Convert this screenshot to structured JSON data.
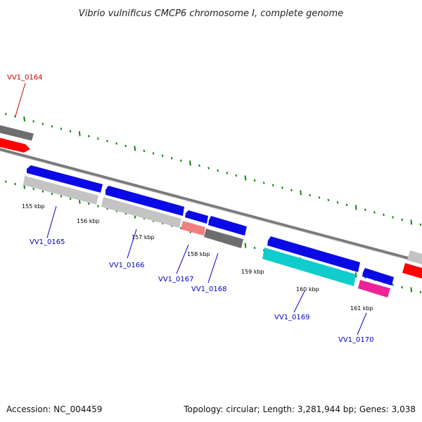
{
  "title": "Vibrio vulnificus CMCP6 chromosome I, complete genome",
  "accession": "Accession: NC_004459",
  "summary": "Topology: circular; Length: 3,281,944 bp; Genes: 3,038",
  "scale_labels": [
    "155 kbp",
    "156 kbp",
    "157 kbp",
    "158 kbp",
    "159 kbp",
    "160 kbp",
    "161 kbp"
  ],
  "genes": [
    {
      "id": "VV1_0164",
      "color": "#cc0000"
    },
    {
      "id": "VV1_0165",
      "color": "#0000cc"
    },
    {
      "id": "VV1_0166",
      "color": "#0000cc"
    },
    {
      "id": "VV1_0167",
      "color": "#0000cc"
    },
    {
      "id": "VV1_0168",
      "color": "#0000cc"
    },
    {
      "id": "VV1_0169",
      "color": "#0000cc"
    },
    {
      "id": "VV1_0170",
      "color": "#0000cc"
    }
  ],
  "colors": {
    "backbone": "#7a7a7a",
    "tick": "#118811",
    "feature_blue": "#0a0ae6",
    "feature_red": "#ff0000",
    "feature_lightgray": "#c4c4c4",
    "feature_darkgray": "#6e6e6e",
    "feature_salmon": "#f08080",
    "feature_cyan": "#10cccc",
    "feature_magenta": "#ee2299"
  }
}
